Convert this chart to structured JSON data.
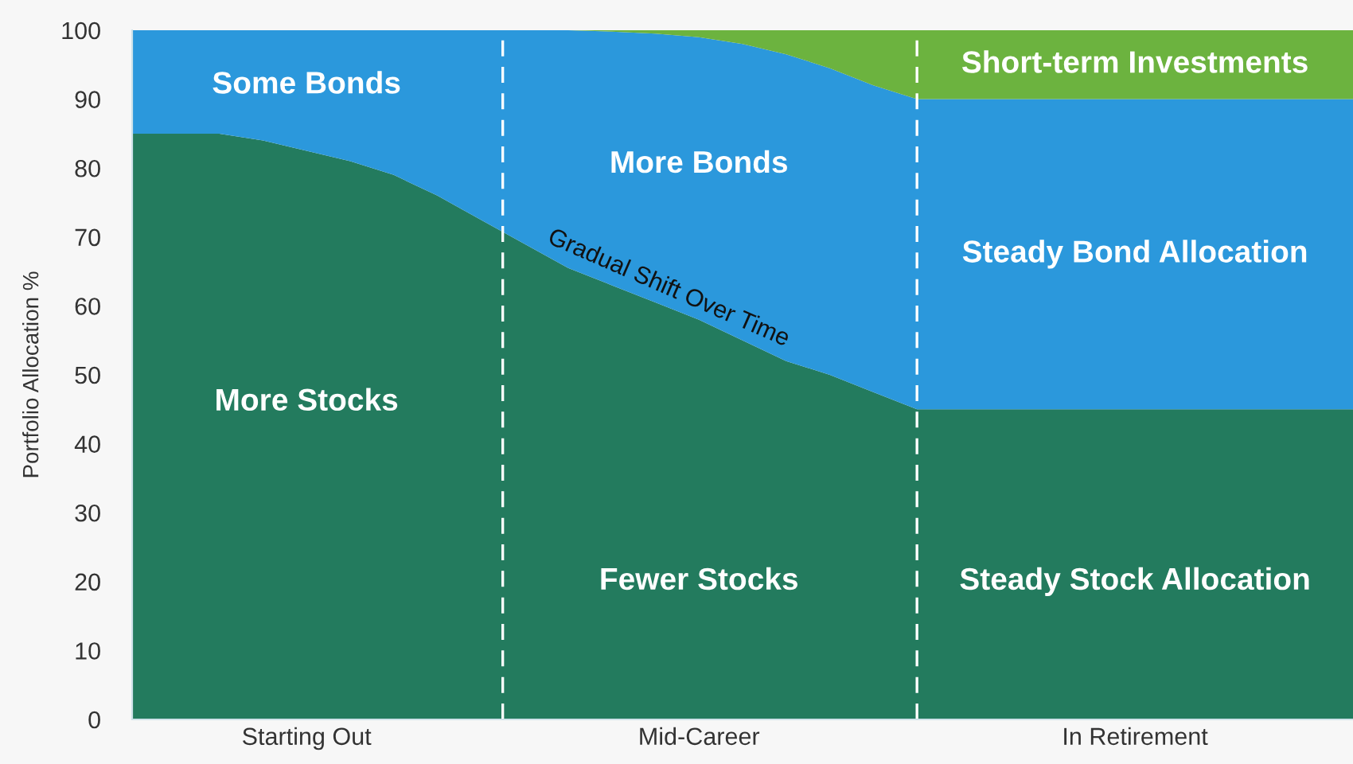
{
  "chart_data": {
    "type": "area",
    "stacked": true,
    "ylabel": "Portfolio Allocation %",
    "categories": [
      null,
      null,
      null,
      null,
      "Starting Out",
      null,
      null,
      null,
      null,
      null,
      null,
      null,
      null,
      "Mid-Career",
      null,
      null,
      null,
      null,
      null,
      null,
      null,
      null,
      null,
      "In Retirement",
      null,
      null,
      null,
      null,
      null
    ],
    "series": [
      {
        "color": "#237b5e",
        "values": [
          85,
          85,
          85,
          84,
          82.5,
          81,
          79,
          76,
          72.5,
          69,
          65.5,
          63,
          60.5,
          58,
          55,
          52,
          50,
          47.5,
          45,
          45,
          45,
          45,
          45,
          45,
          45,
          45,
          45,
          45,
          45
        ]
      },
      {
        "color": "#2b98dc",
        "values": [
          15,
          15,
          15,
          16,
          17.5,
          19,
          21,
          24,
          27.5,
          31,
          34.5,
          36.8,
          39,
          41,
          43,
          44.5,
          44.5,
          44.5,
          45,
          45,
          45,
          45,
          45,
          45,
          45,
          45,
          45,
          45,
          45
        ]
      },
      {
        "color": "#6cb33f",
        "values": [
          0,
          0,
          0,
          0,
          0,
          0,
          0,
          0,
          0,
          0,
          0,
          0.2,
          0.5,
          1,
          2,
          3.5,
          5.5,
          8,
          10,
          10,
          10,
          10,
          10,
          10,
          10,
          10,
          10,
          10,
          10
        ]
      }
    ],
    "ylim": [
      0,
      100
    ],
    "yticks": [
      0,
      10,
      20,
      30,
      40,
      50,
      60,
      70,
      80,
      90,
      100
    ],
    "legend": false,
    "annotations": [
      "Some Bonds",
      "More Stocks",
      "More Bonds",
      "Gradual Shift Over Time",
      "Fewer Stocks",
      "Short-term Investments",
      "Steady Bond Allocation",
      "Steady Stock Allocation"
    ]
  }
}
